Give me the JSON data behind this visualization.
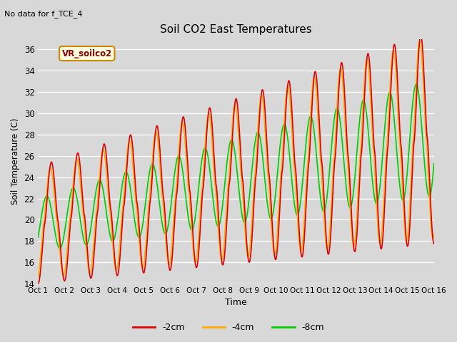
{
  "title": "Soil CO2 East Temperatures",
  "subtitle": "No data for f_TCE_4",
  "xlabel": "Time",
  "ylabel": "Soil Temperature (C)",
  "ylim": [
    14,
    37
  ],
  "yticks": [
    14,
    16,
    18,
    20,
    22,
    24,
    26,
    28,
    30,
    32,
    34,
    36
  ],
  "xtick_labels": [
    "Oct 1",
    "Oct 2",
    "Oct 3",
    "Oct 4",
    "Oct 5",
    "Oct 6",
    "Oct 7",
    "Oct 8",
    "Oct 9",
    "Oct 10",
    "Oct 11",
    "Oct 12",
    "Oct 13",
    "Oct 14",
    "Oct 15",
    "Oct 16"
  ],
  "legend_label": "VR_soilco2",
  "series_colors": [
    "#dd0000",
    "#ffaa00",
    "#00cc00"
  ],
  "series_labels": [
    "-2cm",
    "-4cm",
    "-8cm"
  ],
  "background_color": "#d8d8d8",
  "plot_bg_color": "#d8d8d8",
  "grid_color": "#ffffff",
  "n_days": 15
}
